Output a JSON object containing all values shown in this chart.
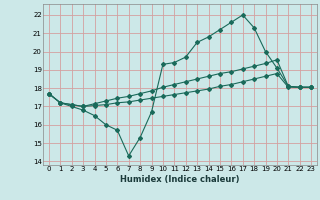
{
  "title": "",
  "xlabel": "Humidex (Indice chaleur)",
  "bg_color": "#cce8e8",
  "grid_color": "#d4a0a0",
  "line_color": "#1a6a5a",
  "xlim": [
    -0.5,
    23.5
  ],
  "ylim": [
    13.8,
    22.6
  ],
  "yticks": [
    14,
    15,
    16,
    17,
    18,
    19,
    20,
    21,
    22
  ],
  "xticks": [
    0,
    1,
    2,
    3,
    4,
    5,
    6,
    7,
    8,
    9,
    10,
    11,
    12,
    13,
    14,
    15,
    16,
    17,
    18,
    19,
    20,
    21,
    22,
    23
  ],
  "line1_x": [
    0,
    1,
    2,
    3,
    4,
    5,
    6,
    7,
    8,
    9,
    10,
    11,
    12,
    13,
    14,
    15,
    16,
    17,
    18,
    19,
    20,
    21,
    22,
    23
  ],
  "line1_y": [
    17.7,
    17.2,
    17.0,
    16.8,
    16.5,
    16.0,
    15.7,
    14.3,
    15.3,
    16.7,
    19.3,
    19.4,
    19.7,
    20.5,
    20.8,
    21.2,
    21.6,
    22.0,
    21.3,
    20.0,
    19.1,
    18.1,
    18.05,
    18.05
  ],
  "line2_x": [
    0,
    1,
    2,
    3,
    4,
    5,
    6,
    7,
    8,
    9,
    10,
    11,
    12,
    13,
    14,
    15,
    16,
    17,
    18,
    19,
    20,
    21,
    22,
    23
  ],
  "line2_y": [
    17.7,
    17.2,
    17.1,
    17.0,
    17.15,
    17.3,
    17.45,
    17.55,
    17.7,
    17.85,
    18.05,
    18.2,
    18.35,
    18.5,
    18.65,
    18.8,
    18.9,
    19.05,
    19.2,
    19.35,
    19.55,
    18.1,
    18.05,
    18.05
  ],
  "line3_x": [
    0,
    1,
    2,
    3,
    4,
    5,
    6,
    7,
    8,
    9,
    10,
    11,
    12,
    13,
    14,
    15,
    16,
    17,
    18,
    19,
    20,
    21,
    22,
    23
  ],
  "line3_y": [
    17.7,
    17.2,
    17.1,
    17.0,
    17.05,
    17.1,
    17.2,
    17.25,
    17.35,
    17.45,
    17.55,
    17.65,
    17.75,
    17.85,
    17.95,
    18.1,
    18.2,
    18.35,
    18.5,
    18.65,
    18.8,
    18.05,
    18.05,
    18.05
  ]
}
